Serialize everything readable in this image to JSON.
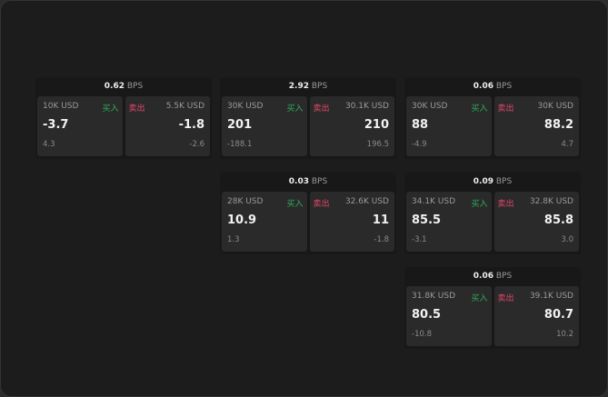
{
  "unit_label": "BPS",
  "buy_label": "买入",
  "sell_label": "卖出",
  "colors": {
    "buy": "#2fae5a",
    "sell": "#e0486a",
    "background": "#1c1c1c"
  },
  "quotes": [
    {
      "spread": "0.62",
      "buy": {
        "size": "10K USD",
        "price": "-3.7",
        "change": "4.3"
      },
      "sell": {
        "size": "5.5K USD",
        "price": "-1.8",
        "change": "-2.6"
      }
    },
    {
      "spread": "2.92",
      "buy": {
        "size": "30K USD",
        "price": "201",
        "change": "-188.1"
      },
      "sell": {
        "size": "30.1K USD",
        "price": "210",
        "change": "196.5"
      }
    },
    {
      "spread": "0.06",
      "buy": {
        "size": "30K USD",
        "price": "88",
        "change": "-4.9"
      },
      "sell": {
        "size": "30K USD",
        "price": "88.2",
        "change": "4.7"
      }
    },
    {
      "spread": "0.03",
      "buy": {
        "size": "28K USD",
        "price": "10.9",
        "change": "1.3"
      },
      "sell": {
        "size": "32.6K USD",
        "price": "11",
        "change": "-1.8"
      }
    },
    {
      "spread": "0.09",
      "buy": {
        "size": "34.1K USD",
        "price": "85.5",
        "change": "-3.1"
      },
      "sell": {
        "size": "32.8K USD",
        "price": "85.8",
        "change": "3.0"
      }
    },
    {
      "spread": "0.06",
      "buy": {
        "size": "31.8K USD",
        "price": "80.5",
        "change": "-10.8"
      },
      "sell": {
        "size": "39.1K USD",
        "price": "80.7",
        "change": "10.2"
      }
    }
  ]
}
